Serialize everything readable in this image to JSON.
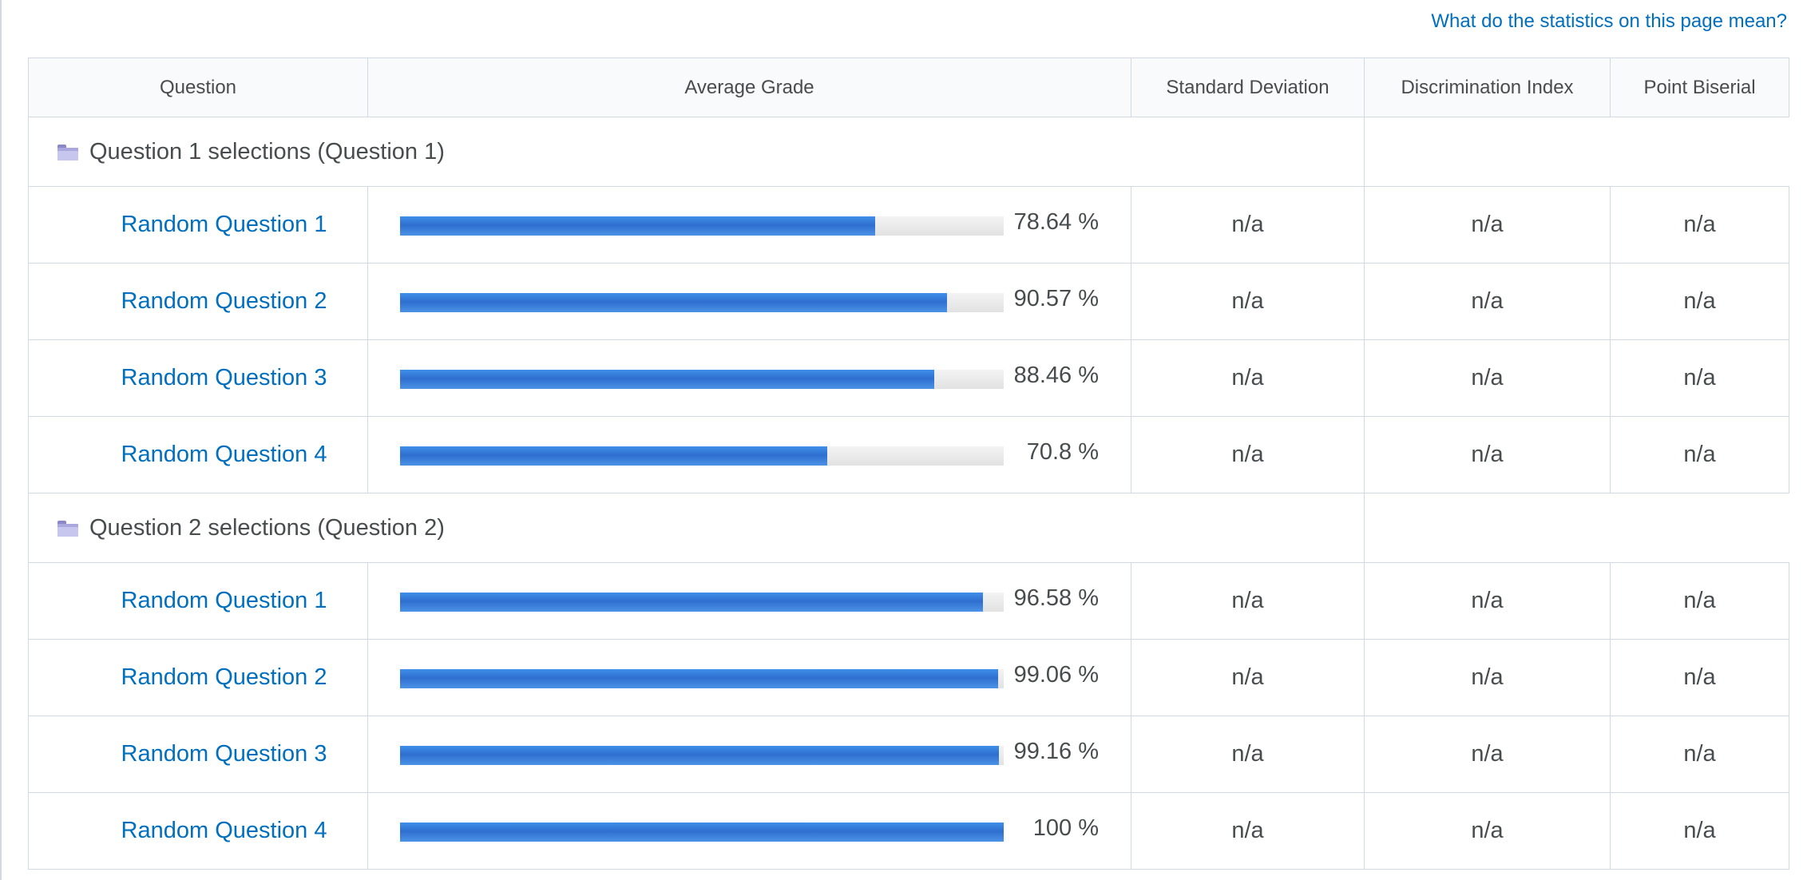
{
  "help_link": "What do the statistics on this page mean?",
  "columns": [
    "Question",
    "Average Grade",
    "Standard Deviation",
    "Discrimination Index",
    "Point Biserial"
  ],
  "sections": [
    {
      "title": "Question 1 selections (Question 1)",
      "rows": [
        {
          "name": "Random Question 1",
          "grade": "78.64 %",
          "fraction": 0.7864,
          "sd": "n/a",
          "di": "n/a",
          "pb": "n/a"
        },
        {
          "name": "Random Question 2",
          "grade": "90.57 %",
          "fraction": 0.9057,
          "sd": "n/a",
          "di": "n/a",
          "pb": "n/a"
        },
        {
          "name": "Random Question 3",
          "grade": "88.46 %",
          "fraction": 0.8846,
          "sd": "n/a",
          "di": "n/a",
          "pb": "n/a"
        },
        {
          "name": "Random Question 4",
          "grade": "70.8 %",
          "fraction": 0.708,
          "sd": "n/a",
          "di": "n/a",
          "pb": "n/a"
        }
      ]
    },
    {
      "title": "Question 2 selections (Question 2)",
      "rows": [
        {
          "name": "Random Question 1",
          "grade": "96.58 %",
          "fraction": 0.9658,
          "sd": "n/a",
          "di": "n/a",
          "pb": "n/a"
        },
        {
          "name": "Random Question 2",
          "grade": "99.06 %",
          "fraction": 0.9906,
          "sd": "n/a",
          "di": "n/a",
          "pb": "n/a"
        },
        {
          "name": "Random Question 3",
          "grade": "99.16 %",
          "fraction": 0.9916,
          "sd": "n/a",
          "di": "n/a",
          "pb": "n/a"
        },
        {
          "name": "Random Question 4",
          "grade": "100 %",
          "fraction": 1.0,
          "sd": "n/a",
          "di": "n/a",
          "pb": "n/a"
        }
      ]
    }
  ],
  "colors": {
    "link": "#006fbf",
    "bar": "#2f6fcf",
    "border": "#d3d9e3"
  }
}
